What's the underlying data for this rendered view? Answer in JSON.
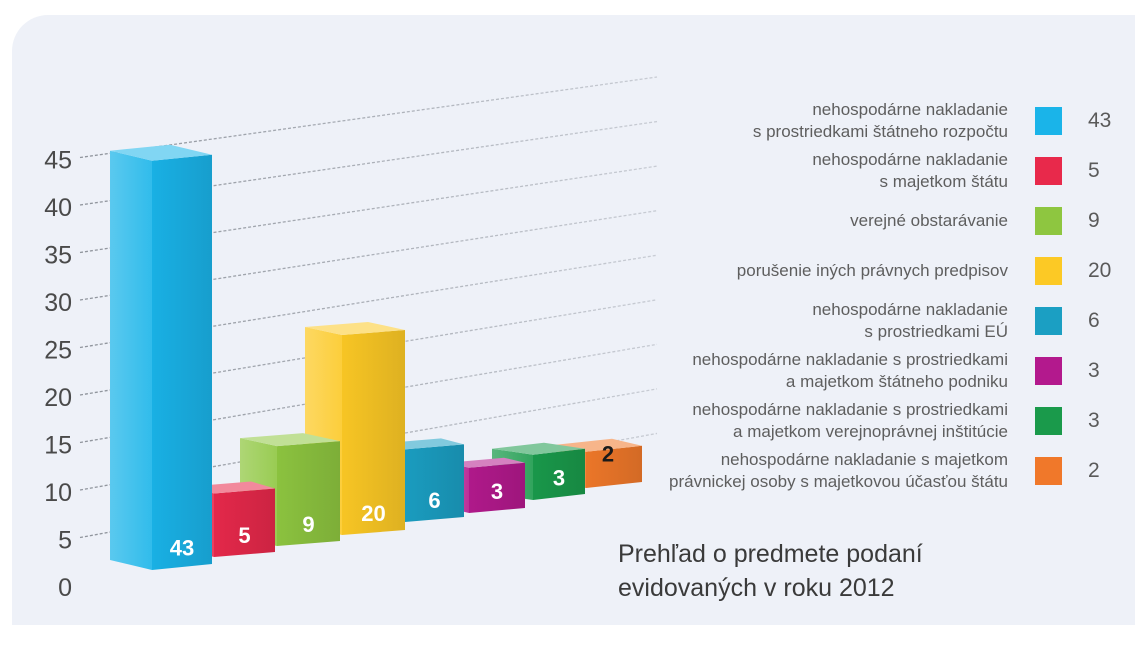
{
  "chart_data": {
    "type": "bar",
    "title": [
      "Prehľad o predmete podaní",
      "evidovaných v roku 2012"
    ],
    "categories": [
      "nehospodárne nakladanie\ns prostriedkami štátneho rozpočtu",
      "nehospodárne nakladanie\ns majetkom štátu",
      "verejné obstarávanie",
      "porušenie iných právnych predpisov",
      "nehospodárne nakladanie\ns prostriedkami EÚ",
      "nehospodárne nakladanie s prostriedkami\na majetkom štátneho podniku",
      "nehospodárne nakladanie s prostriedkami\na majetkom verejnoprávnej inštitúcie",
      "nehospodárne nakladanie s majetkom\nprávnickej osoby s majetkovou účasťou štátu"
    ],
    "values": [
      43,
      5,
      9,
      20,
      6,
      3,
      3,
      2
    ],
    "colors": [
      "#1ab4e9",
      "#e8294b",
      "#8ec640",
      "#fcc925",
      "#1b9fc3",
      "#b3198d",
      "#1a9a4b",
      "#f0782a"
    ],
    "yticks": [
      0,
      5,
      10,
      15,
      20,
      25,
      30,
      35,
      40,
      45
    ],
    "ylim": [
      0,
      45
    ],
    "grid": true,
    "legend_position": "right"
  }
}
